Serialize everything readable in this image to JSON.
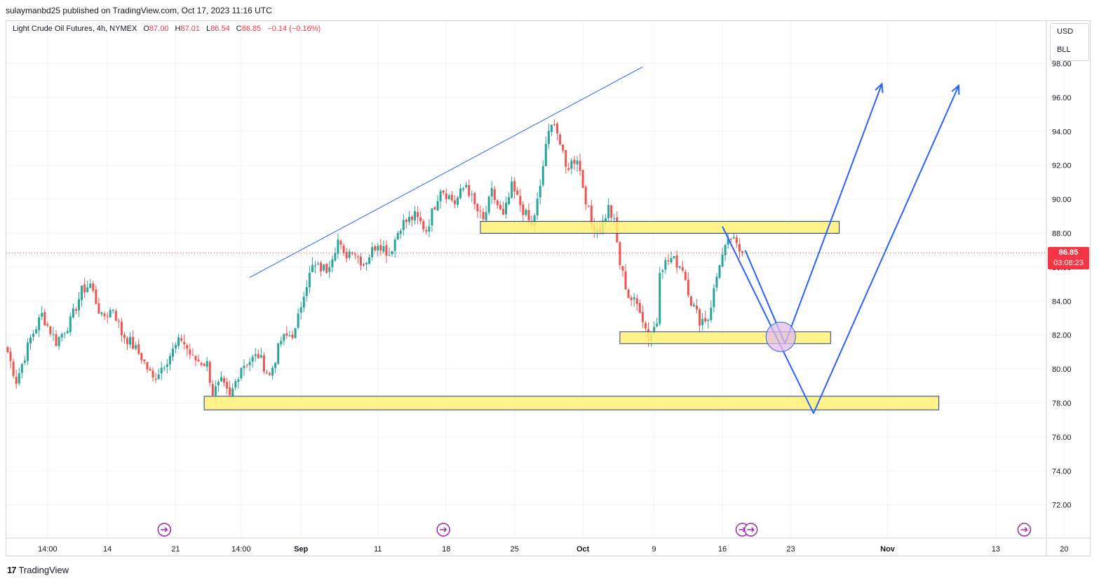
{
  "header": {
    "published_line": "sulaymanbd25 published on TradingView.com, Oct 17, 2023 11:16 UTC"
  },
  "legend": {
    "symbol": "Light Crude Oil Futures, 4h, NYMEX",
    "open_label": "O",
    "open": "87.00",
    "high_label": "H",
    "high": "87.01",
    "low_label": "L",
    "low": "86.54",
    "close_label": "C",
    "close": "86.85",
    "change": "−0.14 (−0.16%)"
  },
  "units": {
    "currency": "USD",
    "unit": "BLL"
  },
  "last_price": {
    "value": "86.85",
    "countdown": "03:08:23"
  },
  "footer": {
    "logo_text": "TradingView",
    "logo_mark": "17"
  },
  "colors": {
    "up": "#26a69a",
    "down": "#ef5350",
    "trend": "#2962ff",
    "zone_fill": "#fff176",
    "zone_border": "#1e3a8a",
    "event_icon": "#9c27b0",
    "last_price": "#f23645"
  },
  "chart_data": {
    "type": "candlestick",
    "title": "Light Crude Oil Futures, 4h, NYMEX",
    "ylim": [
      70.2,
      99.4
    ],
    "y_ticks": [
      "98.00",
      "96.00",
      "94.00",
      "92.00",
      "90.00",
      "88.00",
      "86.00",
      "84.00",
      "82.00",
      "80.00",
      "78.00",
      "76.00",
      "74.00",
      "72.00"
    ],
    "x_ticks": [
      {
        "label": "14:00",
        "i": 14
      },
      {
        "label": "14",
        "i": 35
      },
      {
        "label": "21",
        "i": 59
      },
      {
        "label": "14:00",
        "i": 82
      },
      {
        "label": "Sep",
        "i": 103,
        "bold": true
      },
      {
        "label": "11",
        "i": 130
      },
      {
        "label": "18",
        "i": 154
      },
      {
        "label": "25",
        "i": 178
      },
      {
        "label": "Oct",
        "i": 202,
        "bold": true
      },
      {
        "label": "9",
        "i": 227
      },
      {
        "label": "16",
        "i": 251
      },
      {
        "label": "23",
        "i": 275
      },
      {
        "label": "Nov",
        "i": 309,
        "bold": true
      },
      {
        "label": "13",
        "i": 347
      },
      {
        "label": "20",
        "i": 371
      }
    ],
    "anchors": [
      [
        0,
        81.0
      ],
      [
        3,
        79.3
      ],
      [
        8,
        81.8
      ],
      [
        12,
        83.2
      ],
      [
        17,
        81.6
      ],
      [
        22,
        82.8
      ],
      [
        26,
        84.6
      ],
      [
        29,
        85.0
      ],
      [
        33,
        83.0
      ],
      [
        37,
        83.6
      ],
      [
        40,
        82.1
      ],
      [
        43,
        81.6
      ],
      [
        47,
        80.7
      ],
      [
        51,
        79.4
      ],
      [
        56,
        80.6
      ],
      [
        61,
        81.8
      ],
      [
        65,
        80.6
      ],
      [
        70,
        80.3
      ],
      [
        72,
        78.6
      ],
      [
        75,
        79.2
      ],
      [
        78,
        78.3
      ],
      [
        82,
        80.2
      ],
      [
        88,
        80.8
      ],
      [
        92,
        79.6
      ],
      [
        96,
        81.7
      ],
      [
        101,
        82.2
      ],
      [
        104,
        84.6
      ],
      [
        107,
        86.0
      ],
      [
        112,
        85.9
      ],
      [
        116,
        87.6
      ],
      [
        118,
        86.6
      ],
      [
        121,
        87.1
      ],
      [
        125,
        86.2
      ],
      [
        130,
        87.5
      ],
      [
        134,
        86.8
      ],
      [
        138,
        88.5
      ],
      [
        143,
        89.0
      ],
      [
        147,
        88.2
      ],
      [
        152,
        90.7
      ],
      [
        157,
        89.8
      ],
      [
        161,
        90.9
      ],
      [
        164,
        89.6
      ],
      [
        167,
        88.7
      ],
      [
        170,
        90.4
      ],
      [
        174,
        88.9
      ],
      [
        177,
        90.7
      ],
      [
        180,
        89.7
      ],
      [
        184,
        88.4
      ],
      [
        187,
        90.6
      ],
      [
        189,
        93.3
      ],
      [
        192,
        94.7
      ],
      [
        196,
        91.8
      ],
      [
        200,
        92.5
      ],
      [
        202,
        90.8
      ],
      [
        205,
        88.5
      ],
      [
        208,
        88.2
      ],
      [
        211,
        89.5
      ],
      [
        213,
        88.6
      ],
      [
        215,
        86.2
      ],
      [
        218,
        84.3
      ],
      [
        222,
        83.6
      ],
      [
        225,
        81.8
      ],
      [
        228,
        82.8
      ],
      [
        229,
        86.0
      ],
      [
        233,
        86.5
      ],
      [
        237,
        86.0
      ],
      [
        240,
        84.0
      ],
      [
        243,
        82.9
      ],
      [
        246,
        83.0
      ],
      [
        248,
        84.6
      ],
      [
        250,
        86.3
      ],
      [
        253,
        87.4
      ],
      [
        254,
        87.7
      ],
      [
        256,
        87.2
      ],
      [
        258,
        86.8
      ]
    ],
    "n_candles": 259,
    "last_price": 86.85,
    "annotations": [
      {
        "type": "trendline",
        "from": [
          85,
          85.4
        ],
        "to": [
          223,
          97.8
        ]
      },
      {
        "type": "zone",
        "x_range": [
          166,
          292
        ],
        "y_range": [
          88.7,
          88.0
        ]
      },
      {
        "type": "zone",
        "x_range": [
          215,
          289
        ],
        "y_range": [
          82.2,
          81.5
        ]
      },
      {
        "type": "zone",
        "x_range": [
          69,
          327
        ],
        "y_range": [
          78.4,
          77.6
        ]
      },
      {
        "type": "arrow_path",
        "points": [
          [
            251,
            88.4
          ],
          [
            283,
            77.4
          ],
          [
            334,
            96.7
          ]
        ]
      },
      {
        "type": "arrow_path",
        "points": [
          [
            259,
            87.0
          ],
          [
            273,
            81.5
          ],
          [
            307,
            96.8
          ]
        ]
      },
      {
        "type": "circle",
        "center": [
          271.5,
          81.9
        ],
        "radius_px": 21
      },
      {
        "type": "event_icon",
        "i": [
          55,
          153,
          258,
          261,
          357
        ]
      }
    ]
  }
}
